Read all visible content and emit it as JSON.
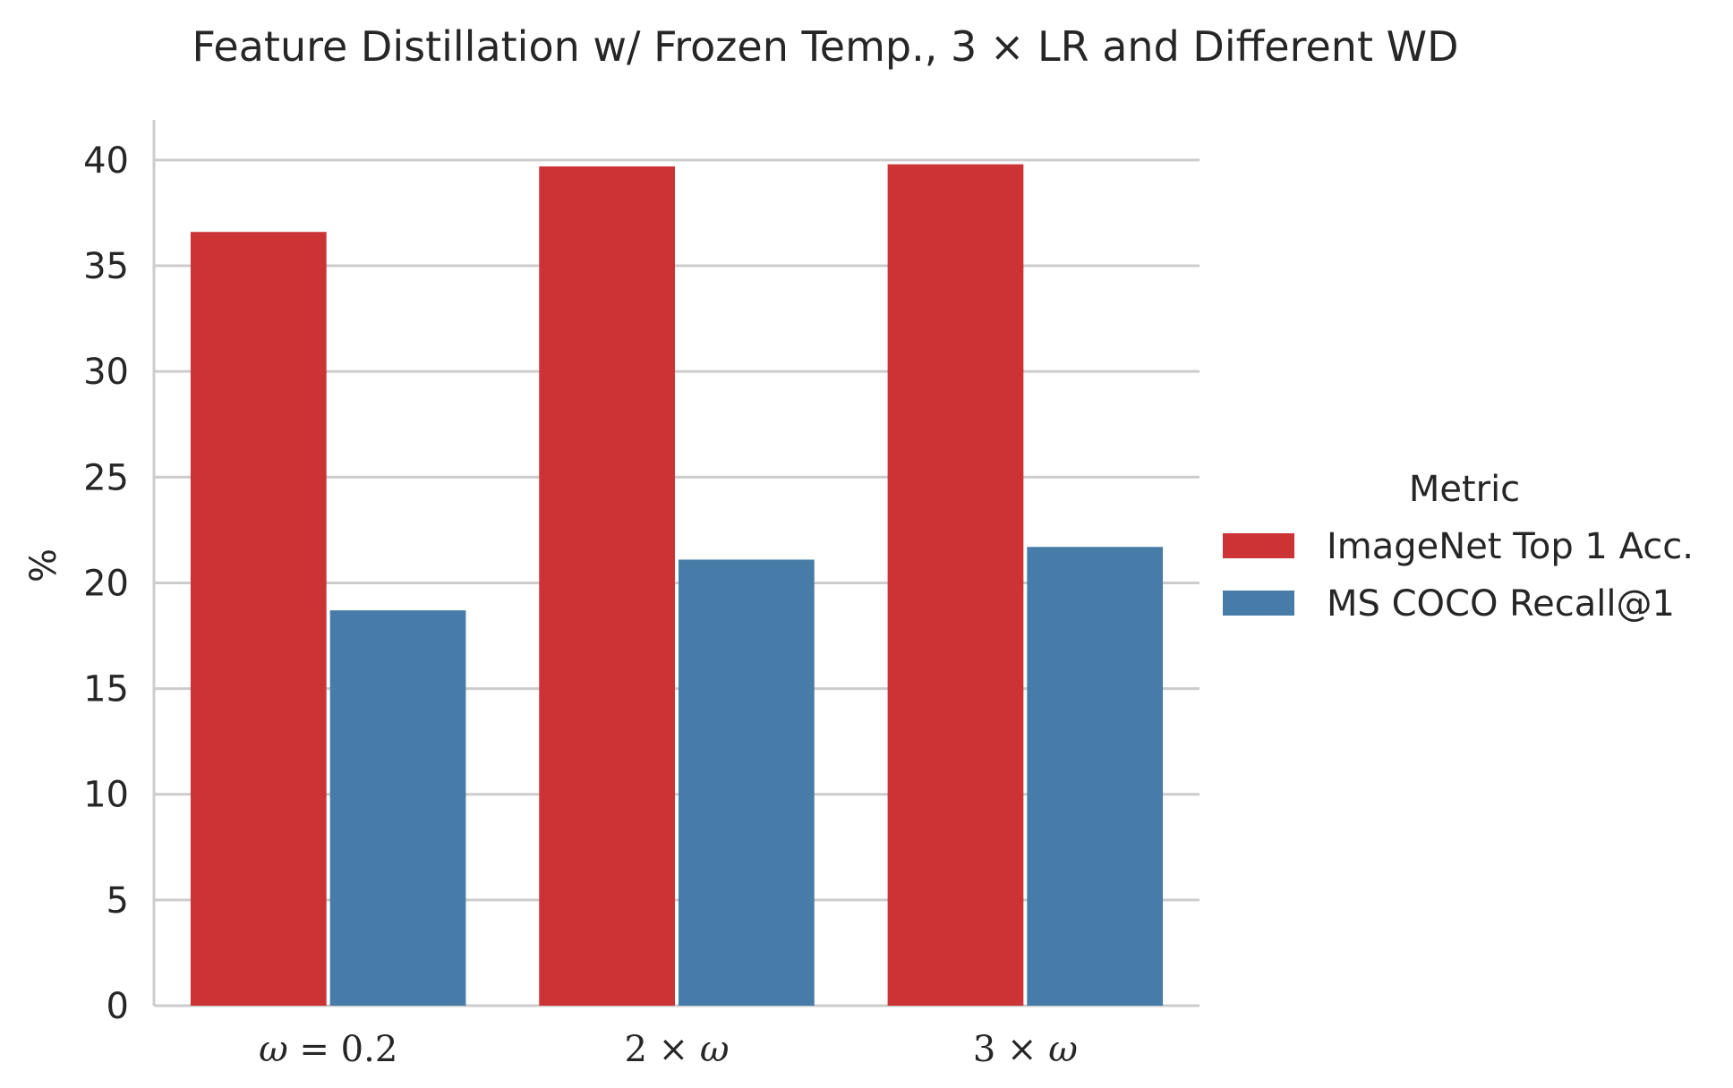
{
  "chart_data": {
    "type": "bar",
    "title": "Feature Distillation w/ Frozen Temp., 3 × LR and Different WD",
    "xlabel": "",
    "ylabel": "%",
    "categories": [
      "ω = 0.2",
      "2 × ω",
      "3 × ω"
    ],
    "series": [
      {
        "name": "ImageNet Top 1 Acc.",
        "color": "#cb3335",
        "values": [
          36.6,
          39.7,
          39.8
        ]
      },
      {
        "name": "MS COCO Recall@1",
        "color": "#477ca8",
        "values": [
          18.7,
          21.1,
          21.7
        ]
      }
    ],
    "ylim": [
      0,
      41.9
    ],
    "yticks": [
      0,
      5,
      10,
      15,
      20,
      25,
      30,
      35,
      40
    ],
    "grid": "horizontal",
    "legend": {
      "title": "Metric",
      "placement": "right"
    }
  }
}
